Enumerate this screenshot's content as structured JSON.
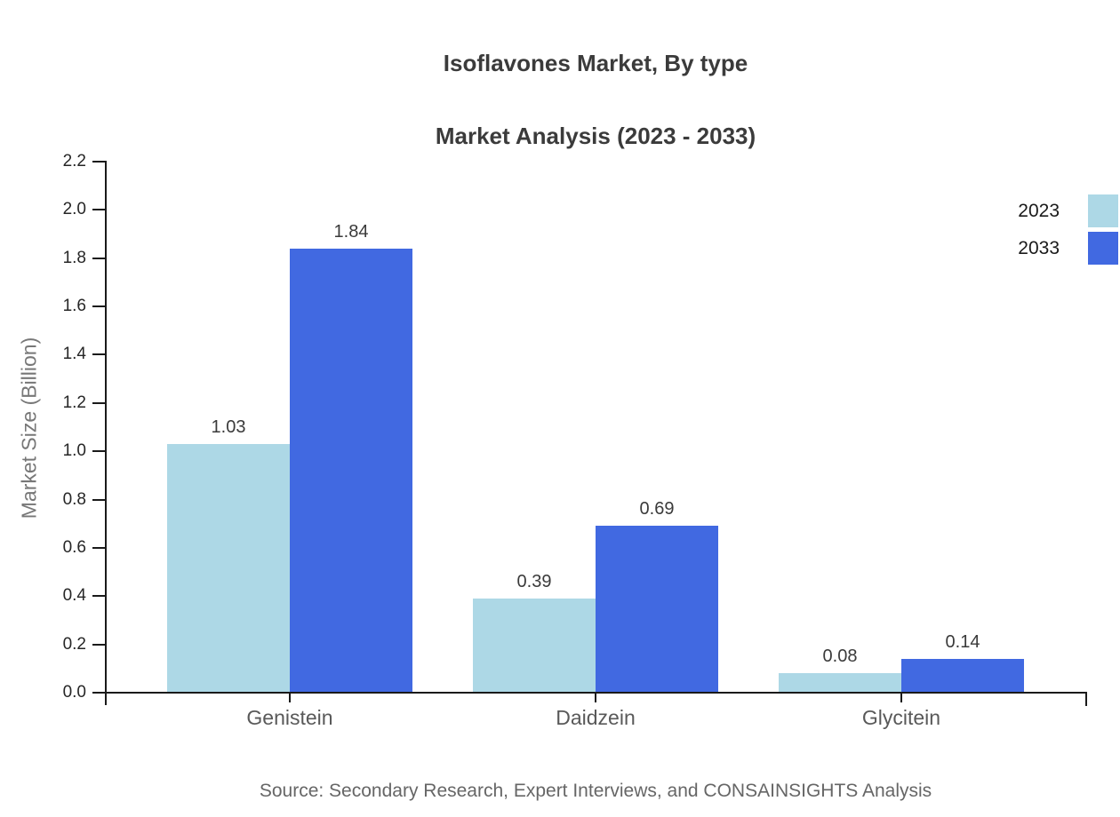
{
  "title": {
    "line1": "Isoflavones Market, By type",
    "line2": "Market Analysis (2023 - 2033)"
  },
  "y_axis_label": "Market Size (Billion)",
  "source": "Source: Secondary Research, Expert Interviews, and CONSAINSIGHTS Analysis",
  "colors": {
    "series_2023": "#ADD8E6",
    "series_2033": "#4169E1",
    "axis": "#1a1a1a",
    "title_text": "#3b3b3b",
    "category_text": "#595959",
    "muted_text": "#777777"
  },
  "chart_data": {
    "type": "bar",
    "title": "Isoflavones Market, By type — Market Analysis (2023 - 2033)",
    "categories": [
      "Genistein",
      "Daidzein",
      "Glycitein"
    ],
    "series": [
      {
        "name": "2023",
        "color": "#ADD8E6",
        "values": [
          1.03,
          0.39,
          0.08
        ]
      },
      {
        "name": "2033",
        "color": "#4169E1",
        "values": [
          1.84,
          0.69,
          0.14
        ]
      }
    ],
    "xlabel": "",
    "ylabel": "Market Size (Billion)",
    "ylim": [
      0,
      2.2
    ],
    "ytick_step": 0.2,
    "ytick_labels": [
      "0.0",
      "0.2",
      "0.4",
      "0.6",
      "0.8",
      "1.0",
      "1.2",
      "1.4",
      "1.6",
      "1.8",
      "2.0",
      "2.2"
    ],
    "value_labels": {
      "2023": [
        "1.03",
        "0.39",
        "0.08"
      ],
      "2033": [
        "1.84",
        "0.69",
        "0.14"
      ]
    },
    "grid": false,
    "legend_position": "upper right",
    "legend_entries": [
      "2023",
      "2033"
    ]
  }
}
